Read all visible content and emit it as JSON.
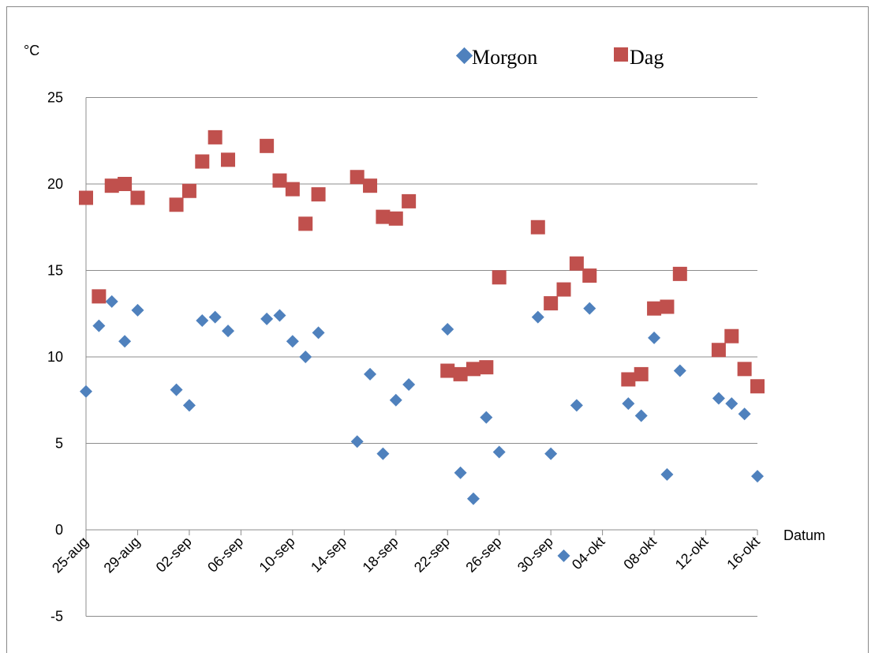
{
  "chart_data": {
    "type": "scatter",
    "ylabel": "°C",
    "xlabel": "Datum",
    "ylim": [
      -5,
      25
    ],
    "yticks": [
      -5,
      0,
      5,
      10,
      15,
      20,
      25
    ],
    "x_tick_labels": [
      "25-aug",
      "29-aug",
      "02-sep",
      "06-sep",
      "10-sep",
      "14-sep",
      "18-sep",
      "22-sep",
      "26-sep",
      "30-sep",
      "04-okt",
      "08-okt",
      "12-okt",
      "16-okt"
    ],
    "x_start_label": "25-aug",
    "x_days_total": 52,
    "gridlines": "horizontal",
    "legend_position": "top-right",
    "series": [
      {
        "name": "Morgon",
        "marker": "diamond",
        "color": "#4f81bd",
        "points": [
          {
            "x": "25-aug",
            "y": 8.0
          },
          {
            "x": "26-aug",
            "y": 11.8
          },
          {
            "x": "27-aug",
            "y": 13.2
          },
          {
            "x": "28-aug",
            "y": 10.9
          },
          {
            "x": "29-aug",
            "y": 12.7
          },
          {
            "x": "01-sep",
            "y": 8.1
          },
          {
            "x": "02-sep",
            "y": 7.2
          },
          {
            "x": "03-sep",
            "y": 12.1
          },
          {
            "x": "04-sep",
            "y": 12.3
          },
          {
            "x": "05-sep",
            "y": 11.5
          },
          {
            "x": "08-sep",
            "y": 12.2
          },
          {
            "x": "09-sep",
            "y": 12.4
          },
          {
            "x": "10-sep",
            "y": 10.9
          },
          {
            "x": "11-sep",
            "y": 10.0
          },
          {
            "x": "12-sep",
            "y": 11.4
          },
          {
            "x": "15-sep",
            "y": 5.1
          },
          {
            "x": "16-sep",
            "y": 9.0
          },
          {
            "x": "17-sep",
            "y": 4.4
          },
          {
            "x": "18-sep",
            "y": 7.5
          },
          {
            "x": "19-sep",
            "y": 8.4
          },
          {
            "x": "22-sep",
            "y": 11.6
          },
          {
            "x": "23-sep",
            "y": 3.3
          },
          {
            "x": "24-sep",
            "y": 1.8
          },
          {
            "x": "25-sep",
            "y": 6.5
          },
          {
            "x": "26-sep",
            "y": 4.5
          },
          {
            "x": "29-sep",
            "y": 12.3
          },
          {
            "x": "30-sep",
            "y": 4.4
          },
          {
            "x": "01-okt",
            "y": -1.5
          },
          {
            "x": "02-okt",
            "y": 7.2
          },
          {
            "x": "03-okt",
            "y": 12.8
          },
          {
            "x": "06-okt",
            "y": 7.3
          },
          {
            "x": "07-okt",
            "y": 6.6
          },
          {
            "x": "08-okt",
            "y": 11.1
          },
          {
            "x": "09-okt",
            "y": 3.2
          },
          {
            "x": "10-okt",
            "y": 9.2
          },
          {
            "x": "13-okt",
            "y": 7.6
          },
          {
            "x": "14-okt",
            "y": 7.3
          },
          {
            "x": "15-okt",
            "y": 6.7
          },
          {
            "x": "16-okt",
            "y": 3.1
          }
        ]
      },
      {
        "name": "Dag",
        "marker": "square",
        "color": "#c0504d",
        "points": [
          {
            "x": "25-aug",
            "y": 19.2
          },
          {
            "x": "26-aug",
            "y": 13.5
          },
          {
            "x": "27-aug",
            "y": 19.9
          },
          {
            "x": "28-aug",
            "y": 20.0
          },
          {
            "x": "29-aug",
            "y": 19.2
          },
          {
            "x": "01-sep",
            "y": 18.8
          },
          {
            "x": "02-sep",
            "y": 19.6
          },
          {
            "x": "03-sep",
            "y": 21.3
          },
          {
            "x": "04-sep",
            "y": 22.7
          },
          {
            "x": "05-sep",
            "y": 21.4
          },
          {
            "x": "08-sep",
            "y": 22.2
          },
          {
            "x": "09-sep",
            "y": 20.2
          },
          {
            "x": "10-sep",
            "y": 19.7
          },
          {
            "x": "11-sep",
            "y": 17.7
          },
          {
            "x": "12-sep",
            "y": 19.4
          },
          {
            "x": "15-sep",
            "y": 20.4
          },
          {
            "x": "16-sep",
            "y": 19.9
          },
          {
            "x": "17-sep",
            "y": 18.1
          },
          {
            "x": "18-sep",
            "y": 18.0
          },
          {
            "x": "19-sep",
            "y": 19.0
          },
          {
            "x": "22-sep",
            "y": 9.2
          },
          {
            "x": "23-sep",
            "y": 9.0
          },
          {
            "x": "24-sep",
            "y": 9.3
          },
          {
            "x": "25-sep",
            "y": 9.4
          },
          {
            "x": "26-sep",
            "y": 14.6
          },
          {
            "x": "29-sep",
            "y": 17.5
          },
          {
            "x": "30-sep",
            "y": 13.1
          },
          {
            "x": "01-okt",
            "y": 13.9
          },
          {
            "x": "02-okt",
            "y": 15.4
          },
          {
            "x": "03-okt",
            "y": 14.7
          },
          {
            "x": "06-okt",
            "y": 8.7
          },
          {
            "x": "07-okt",
            "y": 9.0
          },
          {
            "x": "08-okt",
            "y": 12.8
          },
          {
            "x": "09-okt",
            "y": 12.9
          },
          {
            "x": "10-okt",
            "y": 14.8
          },
          {
            "x": "13-okt",
            "y": 10.4
          },
          {
            "x": "14-okt",
            "y": 11.2
          },
          {
            "x": "15-okt",
            "y": 9.3
          },
          {
            "x": "16-okt",
            "y": 8.3
          }
        ]
      }
    ]
  }
}
